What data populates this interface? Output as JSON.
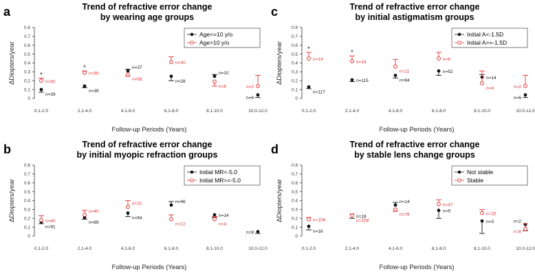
{
  "colors": {
    "black": "#111111",
    "red": "#e03030",
    "axis": "#333333"
  },
  "chart_data": [
    {
      "panel_letter": "a",
      "type": "scatter",
      "title": "Trend of refractive error change",
      "subtitle": "by wearing age groups",
      "xlabel": "Follow-up Periods (Years)",
      "ylabel": "ΔDiopters/year",
      "ylim": [
        0,
        0.8
      ],
      "yticks": [
        "0",
        "0.1",
        "0.2",
        "0.3",
        "0.4",
        "0.5",
        "0.6",
        "0.7",
        "0.8"
      ],
      "categories": [
        "0.1-2.0",
        "2.1-4.0",
        "4.1-6.0",
        "6.1-8.0",
        "8.1-10.0",
        "10.0-12.0"
      ],
      "legend_position": "top-right",
      "series": [
        {
          "name": "Age<=10 y/o",
          "color": "black",
          "points": [
            {
              "mean": 0.1,
              "err": 0.03,
              "err_dir": "down",
              "n": "n=39",
              "n_pos": "right-below"
            },
            {
              "mean": 0.14,
              "err": 0.02,
              "err_dir": "down",
              "n": "n=39",
              "n_pos": "right-below"
            },
            {
              "mean": 0.31,
              "err": 0.02,
              "err_dir": "up",
              "n": "n=37",
              "n_pos": "right-above"
            },
            {
              "mean": 0.25,
              "err": 0.05,
              "err_dir": "down",
              "n": "n=28",
              "n_pos": "right-below"
            },
            {
              "mean": 0.25,
              "err": 0.02,
              "err_dir": "up",
              "n": "n=10",
              "n_pos": "right-above"
            },
            {
              "mean": 0.04,
              "err": 0.03,
              "err_dir": "down",
              "n": "n=6",
              "n_pos": "left-below"
            }
          ]
        },
        {
          "name": "Age>10 y/o",
          "color": "red",
          "points": [
            {
              "mean": 0.2,
              "err": 0.03,
              "err_dir": "up",
              "n": "n=92",
              "n_pos": "right",
              "star": true
            },
            {
              "mean": 0.29,
              "err": 0.02,
              "err_dir": "up",
              "n": "n=90",
              "n_pos": "right",
              "star": true
            },
            {
              "mean": 0.27,
              "err": 0.02,
              "err_dir": "down",
              "n": "n=58",
              "n_pos": "right-below"
            },
            {
              "mean": 0.41,
              "err": 0.06,
              "err_dir": "up",
              "n": "n=30",
              "n_pos": "right"
            },
            {
              "mean": 0.19,
              "err": 0.05,
              "err_dir": "down",
              "n": "n=8",
              "n_pos": "right-below"
            },
            {
              "mean": 0.14,
              "err": 0.12,
              "err_dir": "up",
              "n": "n=2",
              "n_pos": "left"
            }
          ]
        }
      ]
    },
    {
      "panel_letter": "b",
      "type": "scatter",
      "title": "Trend of refractive error change",
      "subtitle": "by initial myopic refraction groups",
      "xlabel": "Follow-up Periods (Years)",
      "ylabel": "ΔDiopters/year",
      "ylim": [
        0,
        0.8
      ],
      "yticks": [
        "0",
        "0.1",
        "0.2",
        "0.3",
        "0.4",
        "0.5",
        "0.6",
        "0.7",
        "0.8"
      ],
      "categories": [
        "0.1-2.0",
        "2.1-4.0",
        "4.1-6.0",
        "6.1-8.0",
        "8.1-10.0",
        "10.0-12.0"
      ],
      "legend_position": "top-right",
      "series": [
        {
          "name": "Initial MR<-5.0",
          "color": "black",
          "points": [
            {
              "mean": 0.16,
              "err": 0.02,
              "err_dir": "down",
              "n": "n=91",
              "n_pos": "right-below"
            },
            {
              "mean": 0.21,
              "err": 0.02,
              "err_dir": "down",
              "n": "n=89",
              "n_pos": "right-below"
            },
            {
              "mean": 0.26,
              "err": 0.04,
              "err_dir": "down",
              "n": "n=64",
              "n_pos": "right-below"
            },
            {
              "mean": 0.35,
              "err": 0.04,
              "err_dir": "up",
              "n": "n=46",
              "n_pos": "right-above"
            },
            {
              "mean": 0.24,
              "err": 0.03,
              "err_dir": "down",
              "n": "n=14",
              "n_pos": "right"
            },
            {
              "mean": 0.05,
              "err": 0.02,
              "err_dir": "down",
              "n": "n=8",
              "n_pos": "left"
            }
          ]
        },
        {
          "name": "Initial MR>=-5.0",
          "color": "red",
          "points": [
            {
              "mean": 0.18,
              "err": 0.05,
              "err_dir": "up",
              "n": "n=40",
              "n_pos": "right"
            },
            {
              "mean": 0.24,
              "err": 0.05,
              "err_dir": "up",
              "n": "n=40",
              "n_pos": "right-above"
            },
            {
              "mean": 0.33,
              "err": 0.07,
              "err_dir": "up",
              "n": "n=31",
              "n_pos": "right-above"
            },
            {
              "mean": 0.19,
              "err": 0.05,
              "err_dir": "up",
              "n": "n=12",
              "n_pos": "right-below"
            },
            {
              "mean": 0.19,
              "err": 0.03,
              "err_dir": "up",
              "n": "n=4",
              "n_pos": "right-below"
            }
          ]
        }
      ]
    },
    {
      "panel_letter": "c",
      "type": "scatter",
      "title": "Trend of refractive error change",
      "subtitle": "by initial astigmatism groups",
      "xlabel": "Follow-up Periods (Years)",
      "ylabel": "ΔDiopters/year",
      "ylim": [
        0,
        0.8
      ],
      "yticks": [
        "0",
        "0.1",
        "0.2",
        "0.3",
        "0.4",
        "0.5",
        "0.6",
        "0.7",
        "0.8"
      ],
      "categories": [
        "0.1-2.0",
        "2.1-4.0",
        "4.1-6.0",
        "6.1-8.0",
        "8.1-10.0",
        "10.0-12.0"
      ],
      "legend_position": "top-right",
      "series": [
        {
          "name": "Initial A<-1.5D",
          "color": "black",
          "points": [
            {
              "mean": 0.13,
              "err": 0.02,
              "err_dir": "down",
              "n": "n=117",
              "n_pos": "right-below"
            },
            {
              "mean": 0.21,
              "err": 0.02,
              "err_dir": "down",
              "n": "n=115",
              "n_pos": "right"
            },
            {
              "mean": 0.26,
              "err": 0.03,
              "err_dir": "down",
              "n": "n=84",
              "n_pos": "right-below"
            },
            {
              "mean": 0.31,
              "err": 0.05,
              "err_dir": "down",
              "n": "n=52",
              "n_pos": "right"
            },
            {
              "mean": 0.24,
              "err": 0.03,
              "err_dir": "up",
              "n": "n=14",
              "n_pos": "right"
            },
            {
              "mean": 0.04,
              "err": 0.03,
              "err_dir": "down",
              "n": "n=6",
              "n_pos": "left-below"
            }
          ]
        },
        {
          "name": "Initial A>=-1.5D",
          "color": "red",
          "points": [
            {
              "mean": 0.45,
              "err": 0.07,
              "err_dir": "up",
              "n": "n=14",
              "n_pos": "right",
              "star": true
            },
            {
              "mean": 0.42,
              "err": 0.06,
              "err_dir": "up",
              "n": "n=14",
              "n_pos": "right",
              "star": true
            },
            {
              "mean": 0.36,
              "err": 0.08,
              "err_dir": "up",
              "n": "n=11",
              "n_pos": "right-below"
            },
            {
              "mean": 0.45,
              "err": 0.07,
              "err_dir": "up",
              "n": "n=6",
              "n_pos": "right"
            },
            {
              "mean": 0.17,
              "err": 0.14,
              "err_dir": "up",
              "n": "n=4",
              "n_pos": "right-below"
            },
            {
              "mean": 0.14,
              "err": 0.12,
              "err_dir": "up",
              "n": "n=2",
              "n_pos": "left"
            }
          ]
        }
      ]
    },
    {
      "panel_letter": "d",
      "type": "scatter",
      "title": "Trend of refractive error change",
      "subtitle": "by stable lens change groups",
      "xlabel": "Follow-up Periods (Years)",
      "ylabel": "ΔDiopters/year",
      "ylim": [
        0,
        0.8
      ],
      "yticks": [
        "0",
        "0.1",
        "0.2",
        "0.3",
        "0.4",
        "0.5",
        "0.6",
        "0.7",
        "0.8"
      ],
      "categories": [
        "0.1-2.0",
        "2.1-4.0",
        "4.1-6.0",
        "6.1-8.0",
        "8.1-10.0",
        "10.0-12.0"
      ],
      "legend_position": "top-right",
      "series": [
        {
          "name": "Not stable",
          "color": "black",
          "points": [
            {
              "mean": 0.11,
              "err": 0.04,
              "err_dir": "down",
              "n": "n=16",
              "n_pos": "right-below"
            },
            {
              "mean": 0.23,
              "err": 0.03,
              "err_dir": "down",
              "n": "n=16",
              "n_pos": "right"
            },
            {
              "mean": 0.35,
              "err": 0.03,
              "err_dir": "up",
              "n": "n=14",
              "n_pos": "right-above"
            },
            {
              "mean": 0.29,
              "err": 0.09,
              "err_dir": "down",
              "n": "n=9",
              "n_pos": "right"
            },
            {
              "mean": 0.17,
              "err": 0.14,
              "err_dir": "down",
              "n": "n=3",
              "n_pos": "right"
            },
            {
              "mean": 0.13,
              "err": 0.07,
              "err_dir": "down",
              "n": "n=2",
              "n_pos": "left-above"
            }
          ]
        },
        {
          "name": "Stable",
          "color": "red",
          "points": [
            {
              "mean": 0.19,
              "err": 0.02,
              "err_dir": "up",
              "n": "n=108",
              "n_pos": "right"
            },
            {
              "mean": 0.23,
              "err": 0.02,
              "err_dir": "up",
              "n": "n=108",
              "n_pos": "right-below"
            },
            {
              "mean": 0.3,
              "err": 0.02,
              "err_dir": "down",
              "n": "n=78",
              "n_pos": "right-below"
            },
            {
              "mean": 0.36,
              "err": 0.05,
              "err_dir": "up",
              "n": "n=47",
              "n_pos": "right"
            },
            {
              "mean": 0.26,
              "err": 0.04,
              "err_dir": "up",
              "n": "n=15",
              "n_pos": "right"
            },
            {
              "mean": 0.08,
              "err": 0.06,
              "err_dir": "up",
              "n": "n=6",
              "n_pos": "left-below"
            }
          ]
        }
      ]
    }
  ]
}
